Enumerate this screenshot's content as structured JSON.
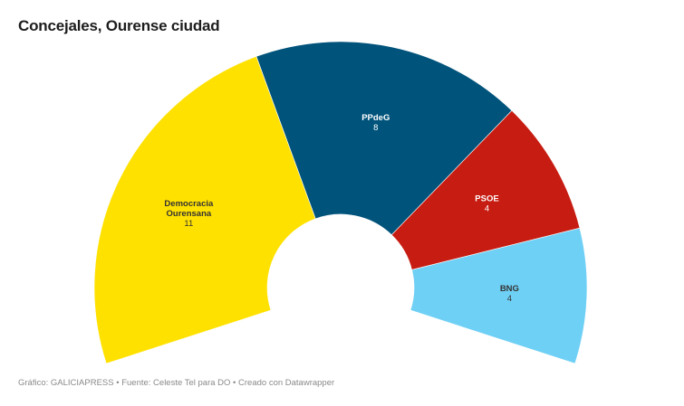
{
  "header": {
    "title": "Concejales, Ourense ciudad"
  },
  "footer": {
    "text": "Gráfico: GALICIAPRESS • Fuente: Celeste Tel para DO • Creado con Datawrapper"
  },
  "chart_data": {
    "type": "pie",
    "subtype": "parliament-arc",
    "title": "Concejales, Ourense ciudad",
    "total_seats": 27,
    "categories": [
      "Democracia Ourensana",
      "PPdeG",
      "PSOE",
      "BNG"
    ],
    "values": [
      11,
      8,
      4,
      4
    ],
    "colors": [
      "#ffe100",
      "#00537b",
      "#c71c12",
      "#6fd0f5"
    ],
    "label_colors": [
      "#333333",
      "#ffffff",
      "#ffffff",
      "#333333"
    ],
    "labels": [
      {
        "name_line1": "Democracia",
        "name_line2": "Ourensana",
        "value": "11"
      },
      {
        "name_line1": "PPdeG",
        "name_line2": "",
        "value": "8"
      },
      {
        "name_line1": "PSOE",
        "name_line2": "",
        "value": "4"
      },
      {
        "name_line1": "BNG",
        "name_line2": "",
        "value": "4"
      }
    ],
    "legend": "none",
    "source": "Celeste Tel para DO"
  }
}
